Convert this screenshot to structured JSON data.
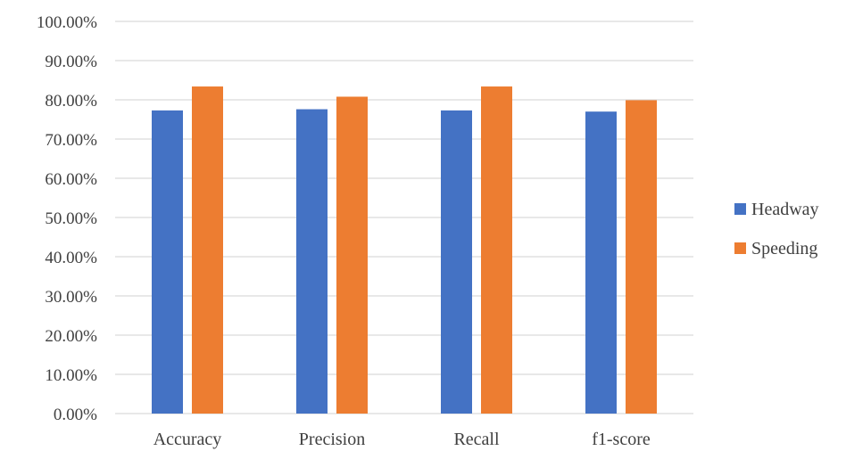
{
  "chart_data": {
    "type": "bar",
    "categories": [
      "Accuracy",
      "Precision",
      "Recall",
      "f1-score"
    ],
    "series": [
      {
        "name": "Headway",
        "color": "#4472C4",
        "values": [
          77.3,
          77.6,
          77.3,
          77.0
        ]
      },
      {
        "name": "Speeding",
        "color": "#ED7D31",
        "values": [
          83.4,
          80.8,
          83.4,
          79.9
        ]
      }
    ],
    "y_ticks": [
      "0.00%",
      "10.00%",
      "20.00%",
      "30.00%",
      "40.00%",
      "50.00%",
      "60.00%",
      "70.00%",
      "80.00%",
      "90.00%",
      "100.00%"
    ],
    "ylim": [
      0,
      100
    ],
    "y_unit": "%",
    "grid": true,
    "legend": "right"
  }
}
